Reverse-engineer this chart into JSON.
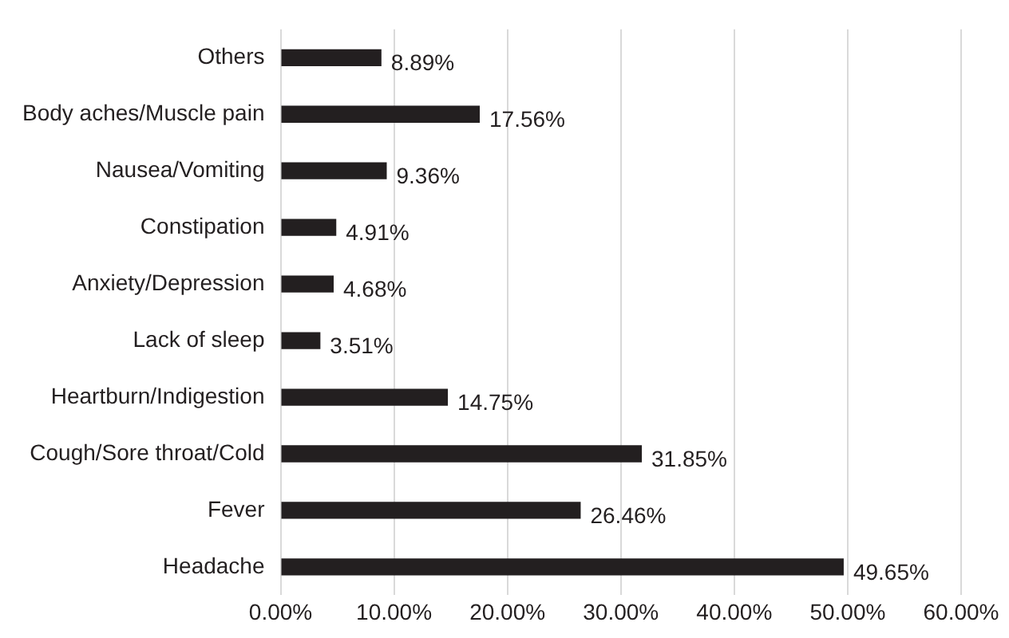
{
  "chart_data": {
    "type": "bar",
    "orientation": "horizontal",
    "categories": [
      "Others",
      "Body aches/Muscle pain",
      "Nausea/Vomiting",
      "Constipation",
      "Anxiety/Depression",
      "Lack of sleep",
      "Heartburn/Indigestion",
      "Cough/Sore throat/Cold",
      "Fever",
      "Headache"
    ],
    "values": [
      8.89,
      17.56,
      9.36,
      4.91,
      4.68,
      3.51,
      14.75,
      31.85,
      26.46,
      49.65
    ],
    "value_labels": [
      "8.89%",
      "17.56%",
      "9.36%",
      "4.91%",
      "4.68%",
      "3.51%",
      "14.75%",
      "31.85%",
      "26.46%",
      "49.65%"
    ],
    "color": "#231f20",
    "xlim": [
      0,
      60
    ],
    "xticks": [
      {
        "value": 0,
        "label": "0.00%"
      },
      {
        "value": 10,
        "label": "10.00%"
      },
      {
        "value": 20,
        "label": "20.00%"
      },
      {
        "value": 30,
        "label": "30.00%"
      },
      {
        "value": 40,
        "label": "40.00%"
      },
      {
        "value": 50,
        "label": "50.00%"
      },
      {
        "value": 60,
        "label": "60.00%"
      }
    ],
    "grid": "x",
    "legend": false
  }
}
